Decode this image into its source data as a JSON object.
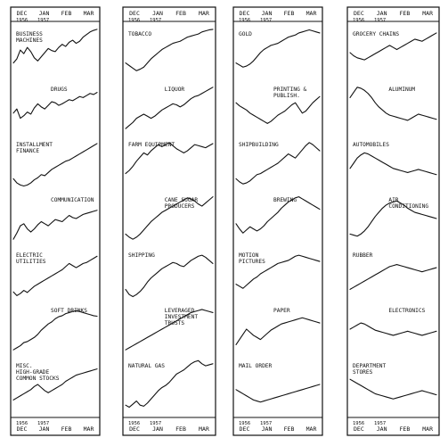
{
  "chart_data": [
    {
      "type": "line",
      "panel": 1,
      "top_axis": {
        "months": [
          "DEC",
          "JAN",
          "FEB",
          "MAR"
        ],
        "years": [
          "1956",
          "1957"
        ]
      },
      "bottom_axis": {
        "months": [
          "DEC",
          "JAN",
          "FEB",
          "MAR"
        ],
        "years": [
          "1956",
          "1957"
        ]
      },
      "x": [
        0,
        0.5,
        1,
        1.5,
        2,
        2.5,
        3,
        3.5,
        4,
        4.5,
        5,
        5.5,
        6,
        6.5,
        7,
        7.5,
        8,
        8.5,
        9,
        9.5,
        10,
        10.5,
        11,
        11.5,
        12
      ],
      "series": [
        {
          "name": "BUSINESS MACHINES",
          "values": [
            30,
            38,
            55,
            48,
            60,
            52,
            40,
            34,
            42,
            50,
            58,
            54,
            52,
            60,
            66,
            62,
            70,
            74,
            68,
            72,
            80,
            85,
            90,
            93,
            95
          ]
        },
        {
          "name": "DRUGS",
          "values": [
            40,
            48,
            30,
            35,
            42,
            38,
            50,
            58,
            52,
            48,
            55,
            62,
            60,
            55,
            58,
            62,
            66,
            64,
            68,
            72,
            70,
            74,
            78,
            76,
            80
          ]
        },
        {
          "name": "INSTALLMENT FINANCE",
          "values": [
            20,
            12,
            8,
            6,
            8,
            12,
            18,
            22,
            28,
            26,
            32,
            38,
            42,
            46,
            50,
            54,
            56,
            60,
            64,
            68,
            72,
            76,
            80,
            84,
            88
          ]
        },
        {
          "name": "COMMUNICATION",
          "values": [
            10,
            22,
            36,
            40,
            30,
            24,
            30,
            38,
            44,
            40,
            36,
            42,
            48,
            46,
            44,
            50,
            56,
            52,
            50,
            54,
            58,
            60,
            62,
            64,
            66
          ]
        },
        {
          "name": "ELECTRIC UTILITIES",
          "values": [
            15,
            8,
            12,
            18,
            14,
            20,
            26,
            30,
            34,
            38,
            42,
            46,
            50,
            54,
            58,
            64,
            70,
            66,
            62,
            66,
            70,
            72,
            76,
            80,
            84
          ]
        },
        {
          "name": "SOFT DRINKS",
          "values": [
            10,
            14,
            18,
            24,
            26,
            30,
            34,
            40,
            48,
            54,
            60,
            64,
            70,
            74,
            76,
            80,
            82,
            84,
            86,
            84,
            82,
            80,
            78,
            76,
            75
          ]
        },
        {
          "name": "MISC. HIGH-GRADE COMMON STOCKS",
          "values": [
            20,
            24,
            28,
            32,
            36,
            40,
            46,
            50,
            44,
            38,
            34,
            38,
            42,
            46,
            50,
            56,
            60,
            64,
            68,
            70,
            72,
            74,
            76,
            78,
            80
          ]
        }
      ]
    },
    {
      "type": "line",
      "panel": 2,
      "top_axis": {
        "months": [
          "DEC",
          "JAN",
          "FEB",
          "MAR"
        ],
        "years": [
          "1956",
          "1957"
        ]
      },
      "bottom_axis": {
        "months": [
          "DEC",
          "JAN",
          "FEB",
          "MAR"
        ],
        "years": [
          "1956",
          "1957"
        ]
      },
      "x": [
        0,
        0.5,
        1,
        1.5,
        2,
        2.5,
        3,
        3.5,
        4,
        4.5,
        5,
        5.5,
        6,
        6.5,
        7,
        7.5,
        8,
        8.5,
        9,
        9.5,
        10,
        10.5,
        11,
        11.5,
        12
      ],
      "series": [
        {
          "name": "TOBACCO",
          "values": [
            30,
            25,
            20,
            15,
            18,
            22,
            30,
            38,
            44,
            50,
            56,
            60,
            64,
            68,
            70,
            72,
            76,
            80,
            82,
            84,
            86,
            90,
            92,
            94,
            95
          ]
        },
        {
          "name": "LIQUOR",
          "values": [
            10,
            16,
            22,
            30,
            34,
            38,
            34,
            30,
            34,
            40,
            46,
            50,
            54,
            58,
            56,
            52,
            56,
            62,
            68,
            72,
            74,
            78,
            82,
            86,
            90
          ]
        },
        {
          "name": "FARM EQUIPMENT",
          "values": [
            30,
            36,
            44,
            54,
            62,
            70,
            66,
            74,
            80,
            86,
            82,
            86,
            90,
            84,
            78,
            74,
            70,
            74,
            80,
            86,
            84,
            82,
            80,
            84,
            88
          ]
        },
        {
          "name": "CANE SUGAR PRODUCERS",
          "values": [
            20,
            14,
            10,
            14,
            20,
            28,
            36,
            44,
            50,
            56,
            62,
            66,
            70,
            74,
            78,
            82,
            86,
            90,
            88,
            84,
            78,
            74,
            80,
            86,
            92
          ]
        },
        {
          "name": "SHIPPING",
          "values": [
            20,
            10,
            6,
            10,
            16,
            24,
            34,
            42,
            48,
            54,
            60,
            64,
            68,
            72,
            70,
            66,
            64,
            70,
            76,
            80,
            84,
            86,
            82,
            76,
            70
          ]
        },
        {
          "name": "LEVERAGED INVESTMENT TRUSTS",
          "values": [
            10,
            14,
            18,
            22,
            26,
            30,
            34,
            38,
            42,
            46,
            50,
            54,
            58,
            62,
            66,
            70,
            74,
            78,
            82,
            84,
            86,
            88,
            86,
            84,
            82
          ]
        },
        {
          "name": "NATURAL GAS",
          "values": [
            10,
            6,
            12,
            18,
            10,
            8,
            14,
            22,
            30,
            38,
            44,
            48,
            54,
            62,
            70,
            74,
            78,
            84,
            90,
            94,
            96,
            90,
            86,
            88,
            90
          ]
        }
      ]
    },
    {
      "type": "line",
      "panel": 3,
      "top_axis": {
        "months": [
          "DEC",
          "JAN",
          "FEB",
          "MAR"
        ],
        "years": [
          "1956",
          "1957"
        ]
      },
      "bottom_axis": {
        "months": [
          "DEC",
          "JAN",
          "FEB",
          "MAR"
        ],
        "years": [
          "1956",
          "1957"
        ]
      },
      "x": [
        0,
        0.5,
        1,
        1.5,
        2,
        2.5,
        3,
        3.5,
        4,
        4.5,
        5,
        5.5,
        6,
        6.5,
        7,
        7.5,
        8,
        8.5,
        9,
        9.5,
        10,
        10.5,
        11,
        11.5,
        12
      ],
      "series": [
        {
          "name": "GOLD",
          "values": [
            30,
            26,
            22,
            24,
            28,
            34,
            42,
            50,
            56,
            60,
            64,
            66,
            68,
            72,
            76,
            80,
            82,
            84,
            88,
            90,
            92,
            94,
            92,
            90,
            88
          ]
        },
        {
          "name": "PRINTING & PUBLISH.",
          "values": [
            60,
            54,
            50,
            46,
            40,
            36,
            32,
            28,
            24,
            20,
            24,
            30,
            36,
            40,
            44,
            50,
            56,
            60,
            50,
            40,
            44,
            52,
            60,
            66,
            72
          ]
        },
        {
          "name": "SHIPBUILDING",
          "values": [
            20,
            14,
            10,
            12,
            16,
            22,
            28,
            30,
            34,
            38,
            42,
            46,
            50,
            56,
            62,
            68,
            64,
            60,
            68,
            76,
            84,
            90,
            86,
            80,
            74
          ]
        },
        {
          "name": "BREWING",
          "values": [
            40,
            30,
            22,
            28,
            34,
            30,
            26,
            30,
            36,
            44,
            50,
            56,
            62,
            70,
            76,
            82,
            86,
            90,
            92,
            88,
            84,
            80,
            76,
            72,
            68
          ]
        },
        {
          "name": "MOTION PICTURES",
          "values": [
            30,
            26,
            22,
            28,
            34,
            40,
            44,
            50,
            54,
            58,
            62,
            66,
            70,
            72,
            74,
            76,
            80,
            84,
            86,
            84,
            82,
            80,
            78,
            76,
            74
          ]
        },
        {
          "name": "PAPER",
          "values": [
            20,
            30,
            40,
            50,
            44,
            38,
            34,
            30,
            36,
            42,
            48,
            52,
            56,
            60,
            62,
            64,
            66,
            68,
            70,
            72,
            70,
            68,
            66,
            64,
            62
          ]
        },
        {
          "name": "MAIL ORDER",
          "values": [
            40,
            36,
            32,
            28,
            24,
            20,
            18,
            16,
            18,
            20,
            22,
            24,
            26,
            28,
            30,
            32,
            34,
            36,
            38,
            40,
            42,
            44,
            46,
            48,
            50
          ]
        }
      ]
    },
    {
      "type": "line",
      "panel": 4,
      "top_axis": {
        "months": [
          "DEC",
          "JAN",
          "FEB",
          "MAR"
        ],
        "years": [
          "1956",
          "1957"
        ]
      },
      "bottom_axis": {
        "months": [
          "DEC",
          "JAN",
          "FEB",
          "MAR"
        ],
        "years": [
          "1956",
          "1957"
        ]
      },
      "x": [
        0,
        0.5,
        1,
        1.5,
        2,
        2.5,
        3,
        3.5,
        4,
        4.5,
        5,
        5.5,
        6,
        6.5,
        7,
        7.5,
        8,
        8.5,
        9,
        9.5,
        10,
        10.5,
        11,
        11.5,
        12
      ],
      "series": [
        {
          "name": "GROCERY CHAINS",
          "values": [
            50,
            44,
            40,
            38,
            36,
            40,
            44,
            48,
            52,
            56,
            60,
            64,
            60,
            56,
            60,
            64,
            68,
            72,
            76,
            74,
            72,
            76,
            80,
            84,
            88
          ]
        },
        {
          "name": "ALUMINUM",
          "values": [
            70,
            80,
            90,
            88,
            84,
            78,
            70,
            60,
            52,
            46,
            40,
            36,
            34,
            32,
            30,
            28,
            26,
            30,
            34,
            38,
            36,
            34,
            32,
            30,
            28
          ]
        },
        {
          "name": "AUTOMOBILES",
          "values": [
            40,
            50,
            60,
            66,
            70,
            68,
            64,
            60,
            56,
            52,
            48,
            44,
            40,
            38,
            36,
            34,
            32,
            34,
            36,
            38,
            36,
            34,
            32,
            30,
            28
          ]
        },
        {
          "name": "AIR CONDITIONING",
          "values": [
            20,
            18,
            16,
            20,
            26,
            34,
            44,
            54,
            62,
            70,
            76,
            80,
            82,
            84,
            80,
            76,
            70,
            66,
            62,
            60,
            58,
            56,
            54,
            52,
            50
          ]
        },
        {
          "name": "RUBBER",
          "values": [
            20,
            24,
            28,
            32,
            36,
            40,
            44,
            48,
            52,
            56,
            60,
            64,
            66,
            68,
            66,
            64,
            62,
            60,
            58,
            56,
            54,
            56,
            58,
            60,
            62
          ]
        },
        {
          "name": "ELECTRONICS",
          "values": [
            50,
            54,
            58,
            62,
            60,
            56,
            52,
            48,
            46,
            44,
            42,
            40,
            38,
            40,
            42,
            44,
            46,
            44,
            42,
            40,
            38,
            40,
            42,
            44,
            46
          ]
        },
        {
          "name": "DEPARTMENT STORES",
          "values": [
            60,
            56,
            52,
            48,
            44,
            40,
            36,
            32,
            30,
            28,
            26,
            24,
            22,
            24,
            26,
            28,
            30,
            32,
            34,
            36,
            38,
            36,
            34,
            32,
            30
          ]
        }
      ]
    }
  ]
}
